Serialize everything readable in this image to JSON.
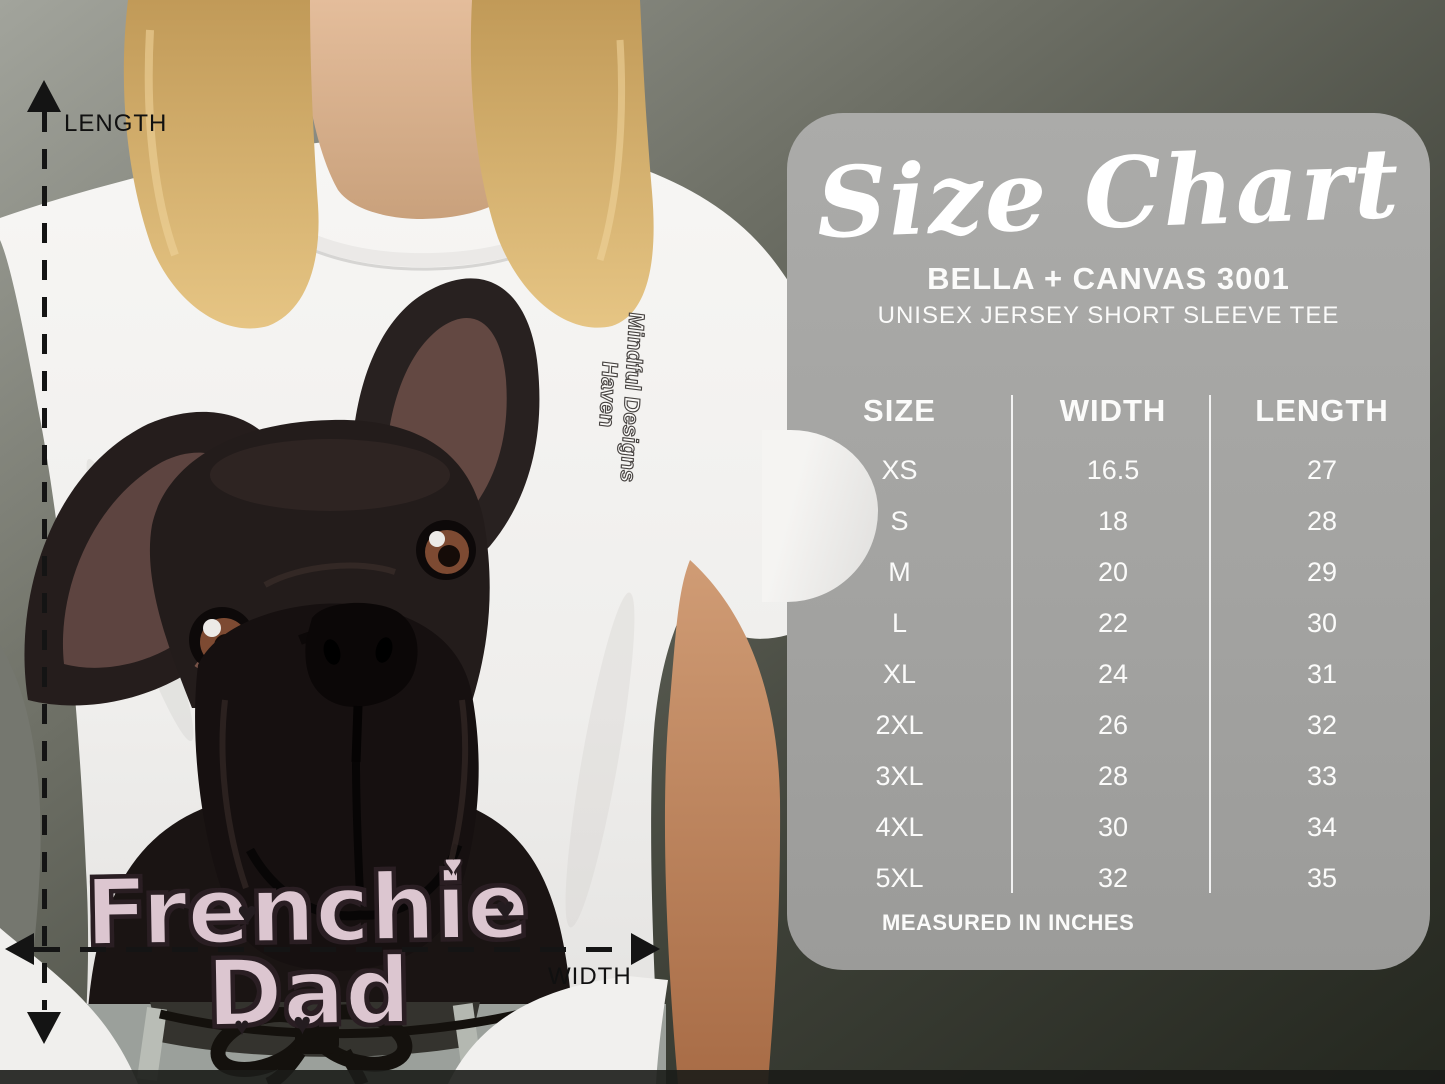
{
  "colors": {
    "backdrop": "#2e312b",
    "panel_bg": "#a3a3a1",
    "panel_text": "#fbfbfa",
    "print_pink": "#dcc6d0",
    "arrow_black": "#141414",
    "shirt_white": "#f4f3f1"
  },
  "measurements": {
    "length_label": "LENGTH",
    "width_label": "WIDTH"
  },
  "shirt_print": {
    "brand_line1": "Mindful Designs",
    "brand_line2": "Haven",
    "graphic_line1": "Frenchie",
    "graphic_line2": "Dad",
    "heart_glyph": "♥"
  },
  "size_panel": {
    "title": "Size Chart",
    "subtitle1": "BELLA + CANVAS 3001",
    "subtitle2": "UNISEX JERSEY SHORT SLEEVE TEE",
    "footnote": "MEASURED IN INCHES",
    "table": {
      "headers": [
        "SIZE",
        "WIDTH",
        "LENGTH"
      ],
      "rows": [
        [
          "XS",
          "16.5",
          "27"
        ],
        [
          "S",
          "18",
          "28"
        ],
        [
          "M",
          "20",
          "29"
        ],
        [
          "L",
          "22",
          "30"
        ],
        [
          "XL",
          "24",
          "31"
        ],
        [
          "2XL",
          "26",
          "32"
        ],
        [
          "3XL",
          "28",
          "33"
        ],
        [
          "4XL",
          "30",
          "34"
        ],
        [
          "5XL",
          "32",
          "35"
        ]
      ]
    }
  },
  "chart_data": {
    "type": "table",
    "title": "Size Chart",
    "subtitle": "BELLA + CANVAS 3001 — UNISEX JERSEY SHORT SLEEVE TEE",
    "units": "inches",
    "columns": [
      "SIZE",
      "WIDTH",
      "LENGTH"
    ],
    "rows": [
      [
        "XS",
        16.5,
        27
      ],
      [
        "S",
        18,
        28
      ],
      [
        "M",
        20,
        29
      ],
      [
        "L",
        22,
        30
      ],
      [
        "XL",
        24,
        31
      ],
      [
        "2XL",
        26,
        32
      ],
      [
        "3XL",
        28,
        33
      ],
      [
        "4XL",
        30,
        34
      ],
      [
        "5XL",
        32,
        35
      ]
    ],
    "notes": "MEASURED IN INCHES"
  }
}
